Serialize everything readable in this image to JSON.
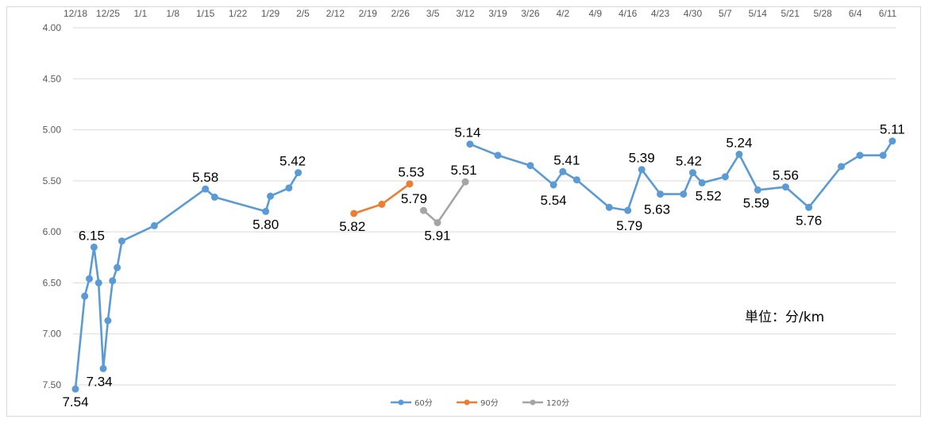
{
  "chart_data": {
    "type": "line",
    "x_ticks": [
      "12/18",
      "12/25",
      "1/1",
      "1/8",
      "1/15",
      "1/22",
      "1/29",
      "2/5",
      "2/12",
      "2/19",
      "2/26",
      "3/5",
      "3/12",
      "3/19",
      "3/26",
      "4/2",
      "4/9",
      "4/16",
      "4/23",
      "4/30",
      "5/7",
      "5/14",
      "5/21",
      "5/28",
      "6/4",
      "6/11"
    ],
    "y_ticks": [
      "4.00",
      "4.50",
      "5.00",
      "5.50",
      "6.00",
      "6.50",
      "7.00",
      "7.50"
    ],
    "ylim": [
      4.0,
      7.5
    ],
    "y_reversed": true,
    "grid": true,
    "legend_position": "bottom",
    "annotation": "単位：分/km",
    "series": [
      {
        "name": "60分",
        "color": "#5b9bd5",
        "points": [
          {
            "x": "12/18",
            "y": 7.54,
            "label": "7.54"
          },
          {
            "x": "12/20",
            "y": 6.63
          },
          {
            "x": "12/21",
            "y": 6.46
          },
          {
            "x": "12/22",
            "y": 6.15,
            "label": "6.15"
          },
          {
            "x": "12/23",
            "y": 6.5
          },
          {
            "x": "12/24",
            "y": 7.34,
            "label": "7.34"
          },
          {
            "x": "12/25",
            "y": 6.87
          },
          {
            "x": "12/26",
            "y": 6.48
          },
          {
            "x": "12/27",
            "y": 6.35
          },
          {
            "x": "12/28",
            "y": 6.09
          },
          {
            "x": "1/4",
            "y": 5.94
          },
          {
            "x": "1/15",
            "y": 5.58,
            "label": "5.58"
          },
          {
            "x": "1/17",
            "y": 5.66
          },
          {
            "x": "1/28",
            "y": 5.8,
            "label": "5.80"
          },
          {
            "x": "1/29",
            "y": 5.65
          },
          {
            "x": "2/2",
            "y": 5.57
          },
          {
            "x": "2/4",
            "y": 5.42,
            "label": "5.42"
          },
          {
            "x": "3/12",
            "y": null
          },
          {
            "x": "3/13",
            "y": 5.14,
            "label": "5.14"
          },
          {
            "x": "3/19",
            "y": 5.25
          },
          {
            "x": "3/26",
            "y": 5.35
          },
          {
            "x": "3/31",
            "y": 5.54,
            "label": "5.54"
          },
          {
            "x": "4/2",
            "y": 5.41,
            "label": "5.41"
          },
          {
            "x": "4/5",
            "y": 5.49
          },
          {
            "x": "4/12",
            "y": 5.76
          },
          {
            "x": "4/16",
            "y": 5.79,
            "label": "5.79"
          },
          {
            "x": "4/19",
            "y": 5.39,
            "label": "5.39"
          },
          {
            "x": "4/23",
            "y": 5.63,
            "label": "5.63"
          },
          {
            "x": "4/28",
            "y": 5.63
          },
          {
            "x": "4/30",
            "y": 5.42,
            "label": "5.42"
          },
          {
            "x": "5/2",
            "y": 5.52,
            "label": "5.52"
          },
          {
            "x": "5/7",
            "y": 5.46
          },
          {
            "x": "5/10",
            "y": 5.24,
            "label": "5.24"
          },
          {
            "x": "5/14",
            "y": 5.59,
            "label": "5.59"
          },
          {
            "x": "5/20",
            "y": 5.56,
            "label": "5.56"
          },
          {
            "x": "5/25",
            "y": 5.76,
            "label": "5.76"
          },
          {
            "x": "6/1",
            "y": 5.36
          },
          {
            "x": "6/5",
            "y": 5.25
          },
          {
            "x": "6/10",
            "y": 5.25
          },
          {
            "x": "6/12",
            "y": 5.11,
            "label": "5.11"
          }
        ]
      },
      {
        "name": "90分",
        "color": "#ed7d31",
        "points": [
          {
            "x": "2/16",
            "y": 5.82,
            "label": "5.82"
          },
          {
            "x": "2/22",
            "y": 5.73
          },
          {
            "x": "2/28",
            "y": 5.53,
            "label": "5.53"
          }
        ]
      },
      {
        "name": "120分",
        "color": "#a5a5a5",
        "points": [
          {
            "x": "3/3",
            "y": 5.79,
            "label": "5.79"
          },
          {
            "x": "3/6",
            "y": 5.91,
            "label": "5.91"
          },
          {
            "x": "3/12",
            "y": 5.51,
            "label": "5.51"
          }
        ]
      }
    ]
  }
}
